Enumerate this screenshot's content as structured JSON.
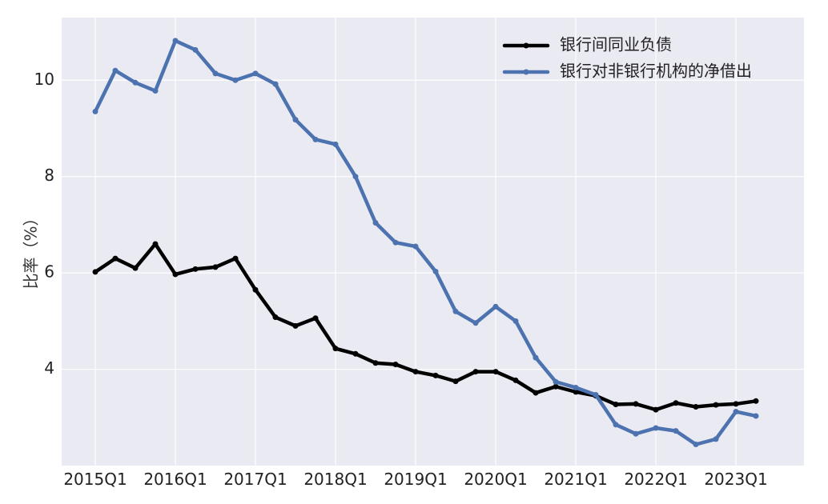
{
  "chart_data": {
    "type": "line",
    "title": "",
    "xlabel": "",
    "ylabel": "比率（%）",
    "ylim": [
      2.0,
      11.3
    ],
    "y_ticks": [
      4,
      6,
      8,
      10
    ],
    "x_tick_labels": [
      "2015Q1",
      "2016Q1",
      "2017Q1",
      "2018Q1",
      "2019Q1",
      "2020Q1",
      "2021Q1",
      "2022Q1",
      "2023Q1"
    ],
    "grid": true,
    "legend_position": "top-right",
    "x": [
      "2015Q1",
      "2015Q2",
      "2015Q3",
      "2015Q4",
      "2016Q1",
      "2016Q2",
      "2016Q3",
      "2016Q4",
      "2017Q1",
      "2017Q2",
      "2017Q3",
      "2017Q4",
      "2018Q1",
      "2018Q2",
      "2018Q3",
      "2018Q4",
      "2019Q1",
      "2019Q2",
      "2019Q3",
      "2019Q4",
      "2020Q1",
      "2020Q2",
      "2020Q3",
      "2020Q4",
      "2021Q1",
      "2021Q2",
      "2021Q3",
      "2021Q4",
      "2022Q1",
      "2022Q2",
      "2022Q3",
      "2022Q4",
      "2023Q1",
      "2023Q2"
    ],
    "series": [
      {
        "name": "银行间同业负债",
        "color": "#000000",
        "values": [
          6.02,
          6.3,
          6.1,
          6.6,
          5.97,
          6.08,
          6.12,
          6.3,
          5.65,
          5.08,
          4.9,
          5.06,
          4.43,
          4.32,
          4.13,
          4.1,
          3.95,
          3.87,
          3.75,
          3.95,
          3.95,
          3.77,
          3.51,
          3.64,
          3.53,
          3.45,
          3.27,
          3.28,
          3.16,
          3.3,
          3.22,
          3.26,
          3.28,
          3.34
        ]
      },
      {
        "name": "银行对非银行机构的净借出",
        "color": "#4c72b0",
        "values": [
          9.35,
          10.2,
          9.95,
          9.78,
          10.82,
          10.63,
          10.14,
          10.0,
          10.14,
          9.92,
          9.18,
          8.77,
          8.67,
          8.0,
          7.04,
          6.63,
          6.55,
          6.03,
          5.2,
          4.96,
          5.3,
          5.0,
          4.24,
          3.74,
          3.62,
          3.47,
          2.85,
          2.66,
          2.78,
          2.72,
          2.44,
          2.55,
          3.12,
          3.03
        ]
      }
    ]
  }
}
